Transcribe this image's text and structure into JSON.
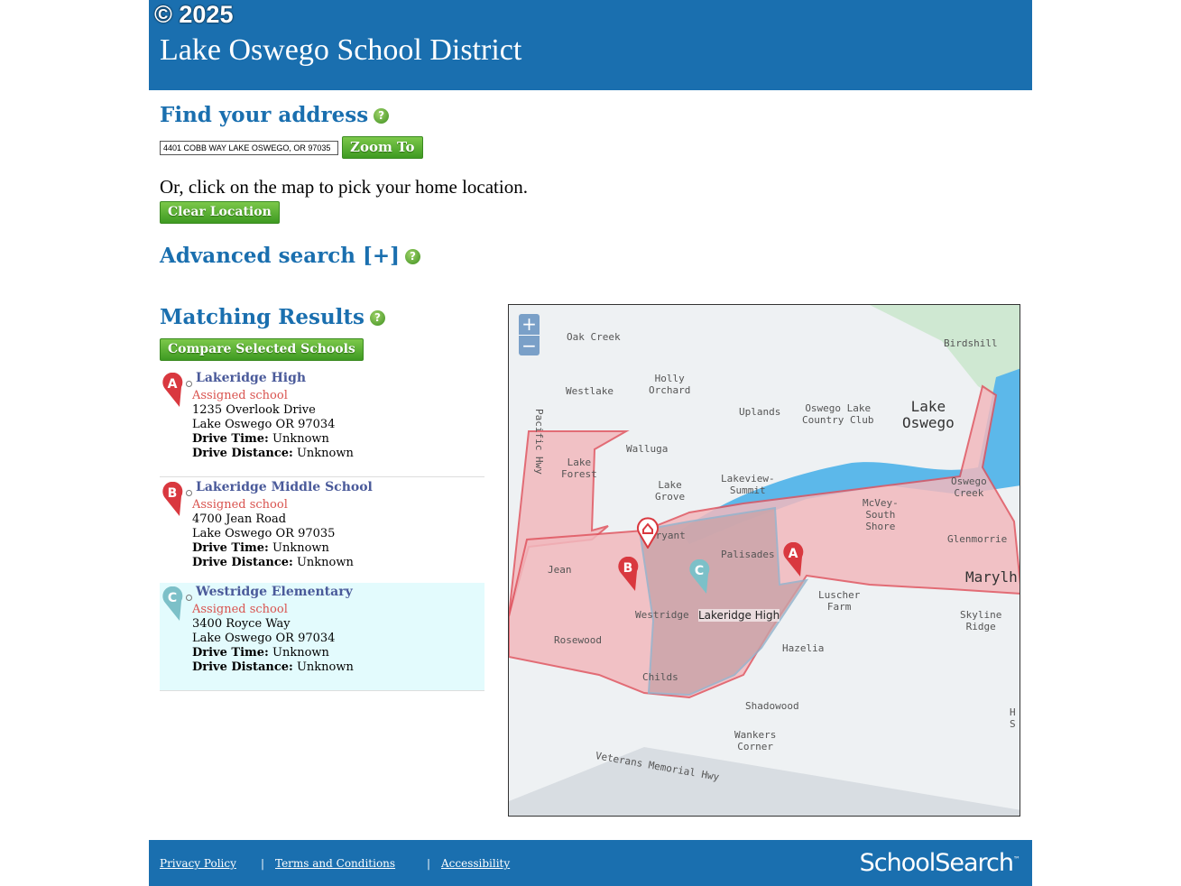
{
  "header": {
    "title": "Lake Oswego School District",
    "copyright": "© 2025"
  },
  "find": {
    "heading": "Find your address",
    "address_value": "4401 COBB WAY LAKE OSWEGO, OR 97035",
    "zoom_button": "Zoom To",
    "or_text": "Or, click on the map to pick your home location.",
    "clear_button": "Clear Location"
  },
  "advanced": {
    "heading": "Advanced search [+]"
  },
  "results": {
    "heading": "Matching Results",
    "compare_button": "Compare Selected Schools",
    "items": [
      {
        "marker": "A",
        "name": "Lakeridge High",
        "status": "Assigned school",
        "street": "1235 Overlook Drive",
        "city": "Lake Oswego OR 97034",
        "drive_time_label": "Drive Time:",
        "drive_time": "Unknown",
        "drive_distance_label": "Drive Distance:",
        "drive_distance": "Unknown",
        "color": "#d9383f"
      },
      {
        "marker": "B",
        "name": "Lakeridge Middle School",
        "status": "Assigned school",
        "street": "4700 Jean Road",
        "city": "Lake Oswego OR 97035",
        "drive_time_label": "Drive Time:",
        "drive_time": "Unknown",
        "drive_distance_label": "Drive Distance:",
        "drive_distance": "Unknown",
        "color": "#d9383f"
      },
      {
        "marker": "C",
        "name": "Westridge Elementary",
        "status": "Assigned school",
        "street": "3400 Royce Way",
        "city": "Lake Oswego OR 97034",
        "drive_time_label": "Drive Time:",
        "drive_time": "Unknown",
        "drive_distance_label": "Drive Distance:",
        "drive_distance": "Unknown",
        "color": "#7cc0c8"
      }
    ]
  },
  "map": {
    "zoom_in": "+",
    "zoom_out": "−",
    "tooltip": "Lakeridge High",
    "labels": [
      "Oak Creek",
      "Birdshill",
      "Holly\nOrchard",
      "Westlake",
      "Uplands",
      "Oswego Lake\nCountry Club",
      "Lake\nOswego",
      "Pacific Hwy",
      "Walluga",
      "Lake\nForest",
      "Lake\nGrove",
      "Lakeview-\nSummit",
      "Oswego\nCreek",
      "McVey-\nSouth\nShore",
      "Glenmorrie",
      "Bryant",
      "Jean",
      "Palisades",
      "Marylh",
      "Luscher\nFarm",
      "Westridge",
      "Skyline\nRidge",
      "Rosewood",
      "Hazelia",
      "Childs",
      "Shadowood",
      "Wankers\nCorner",
      "Veterans Memorial Hwy",
      "H\nS"
    ]
  },
  "footer": {
    "links": [
      "Privacy Policy",
      "Terms and Conditions",
      "Accessibility"
    ],
    "separator": "|",
    "logo": "SchoolSearch",
    "logo_tm": "™"
  }
}
